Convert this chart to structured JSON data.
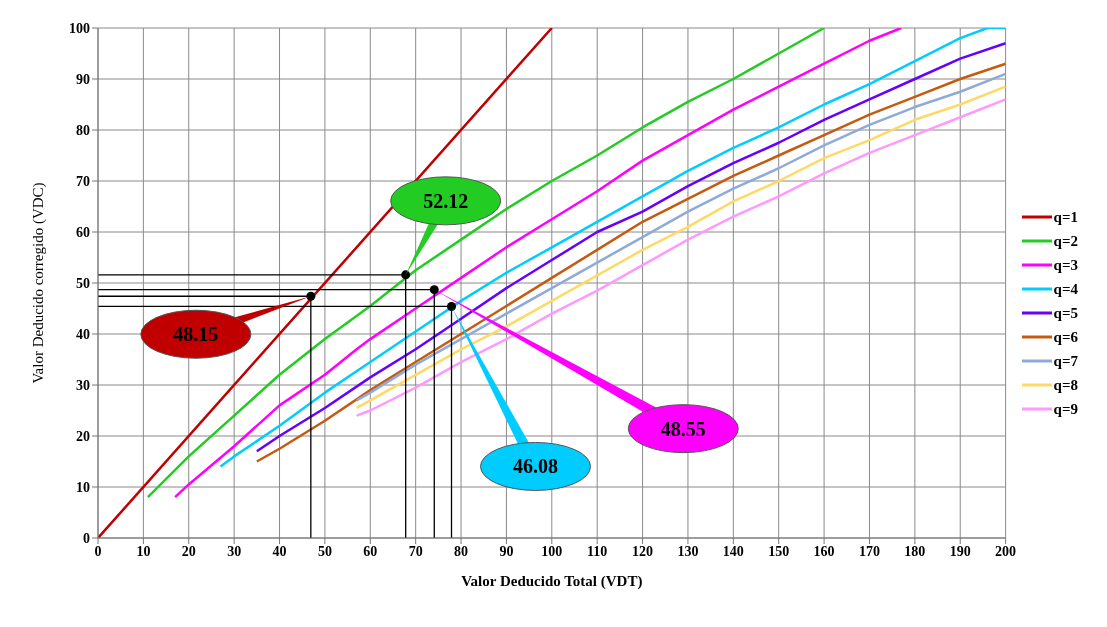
{
  "chart_data": {
    "type": "line",
    "xlabel": "Valor Deducido Total (VDT)",
    "ylabel": "Valor Deducido corregido (VDC)",
    "xlim": [
      0,
      200
    ],
    "xticks": [
      0,
      10,
      20,
      30,
      40,
      50,
      60,
      70,
      80,
      90,
      100,
      110,
      120,
      130,
      140,
      150,
      160,
      170,
      180,
      190,
      200
    ],
    "ylim": [
      0,
      100
    ],
    "yticks": [
      0,
      10,
      20,
      30,
      40,
      50,
      60,
      70,
      80,
      90,
      100
    ],
    "grid": true,
    "legend": "right",
    "line_style": "solid",
    "series": [
      {
        "name": "q=1",
        "color": "#c00000",
        "x": [
          0,
          100
        ],
        "values": [
          0,
          100
        ]
      },
      {
        "name": "q=2",
        "color": "#22cc22",
        "x": [
          11,
          20,
          30,
          40,
          50,
          60,
          70,
          80,
          90,
          100,
          110,
          120,
          130,
          140,
          150,
          160
        ],
        "values": [
          8,
          16,
          24,
          32,
          39,
          45.5,
          52.5,
          58.5,
          64.5,
          70,
          75,
          80.5,
          85.5,
          90,
          95,
          100
        ]
      },
      {
        "name": "q=3",
        "color": "#ff00ff",
        "x": [
          17,
          20,
          30,
          40,
          50,
          57,
          60,
          70,
          80,
          90,
          100,
          110,
          120,
          130,
          140,
          150,
          160,
          170,
          177
        ],
        "values": [
          8,
          10.5,
          18,
          26,
          32,
          37,
          39,
          45,
          51,
          57,
          62.5,
          68,
          74,
          79,
          84,
          88.5,
          93,
          97.5,
          100
        ]
      },
      {
        "name": "q=4",
        "color": "#00ccff",
        "x": [
          27,
          30,
          40,
          50,
          60,
          70,
          80,
          90,
          100,
          110,
          120,
          130,
          140,
          150,
          160,
          170,
          180,
          190,
          196,
          200
        ],
        "values": [
          14,
          16,
          22,
          28.5,
          34.5,
          40.5,
          46.5,
          52,
          57,
          62,
          67,
          72,
          76.5,
          80.5,
          85,
          89,
          93.5,
          98,
          100,
          100
        ]
      },
      {
        "name": "q=5",
        "color": "#6600ff",
        "x": [
          35,
          40,
          50,
          60,
          70,
          80,
          90,
          100,
          110,
          120,
          130,
          140,
          150,
          160,
          170,
          180,
          190,
          200
        ],
        "values": [
          17,
          20,
          25.5,
          31.5,
          37,
          43,
          49,
          54.5,
          60,
          64,
          69,
          73.5,
          77.5,
          82,
          86,
          90,
          94,
          97
        ]
      },
      {
        "name": "q=6",
        "color": "#c55a11",
        "x": [
          35,
          40,
          50,
          60,
          70,
          80,
          90,
          100,
          110,
          120,
          130,
          140,
          150,
          160,
          170,
          180,
          190,
          200
        ],
        "values": [
          15,
          17.5,
          23,
          29,
          34.5,
          40,
          45.5,
          51,
          56.5,
          62,
          66.5,
          71,
          75,
          79,
          83,
          86.5,
          90,
          93
        ]
      },
      {
        "name": "q=7",
        "color": "#8eaadb",
        "x": [
          57,
          60,
          70,
          80,
          90,
          100,
          110,
          120,
          130,
          140,
          150,
          160,
          170,
          180,
          190,
          200
        ],
        "values": [
          27,
          28.5,
          34,
          39,
          44,
          49,
          54,
          59,
          64,
          68.5,
          72.5,
          77,
          81,
          84.5,
          87.5,
          91
        ]
      },
      {
        "name": "q=8",
        "color": "#ffd966",
        "x": [
          57,
          60,
          70,
          80,
          90,
          100,
          110,
          120,
          130,
          140,
          150,
          160,
          170,
          180,
          190,
          200
        ],
        "values": [
          25.5,
          27,
          32,
          37,
          41.5,
          46.5,
          51.5,
          56.5,
          61,
          66,
          70,
          74.5,
          78,
          82,
          85,
          88.5
        ]
      },
      {
        "name": "q=9",
        "color": "#ff99ff",
        "x": [
          57,
          60,
          70,
          80,
          90,
          100,
          110,
          120,
          130,
          140,
          150,
          160,
          170,
          180,
          190,
          200
        ],
        "values": [
          24,
          25,
          29.5,
          34.5,
          39,
          44,
          48.5,
          53.5,
          58.5,
          63,
          67,
          71.5,
          75.5,
          79,
          82.5,
          86
        ]
      },
      {
        "color": "#000000",
        "x": [
          0,
          46.9,
          46.9
        ],
        "values": [
          47.4,
          47.4,
          0
        ]
      },
      {
        "color": "#000000",
        "x": [
          0,
          67.8,
          67.8
        ],
        "values": [
          51.6,
          51.6,
          0
        ]
      },
      {
        "color": "#000000",
        "x": [
          0,
          74.1,
          74.1
        ],
        "values": [
          48.7,
          48.7,
          0
        ]
      },
      {
        "color": "#000000",
        "x": [
          0,
          77.9,
          77.9
        ],
        "values": [
          45.4,
          45.4,
          0
        ]
      },
      {
        "type": "scatter",
        "color": "#000000",
        "marker": "circle",
        "x": [
          46.9,
          67.8,
          74.1,
          77.9
        ],
        "values": [
          47.4,
          51.6,
          48.7,
          45.4
        ]
      }
    ],
    "annotations": [
      {
        "text": "48.15",
        "x": 46.9,
        "y": 47.4
      },
      "52.12",
      "48.55",
      "46.08"
    ]
  }
}
